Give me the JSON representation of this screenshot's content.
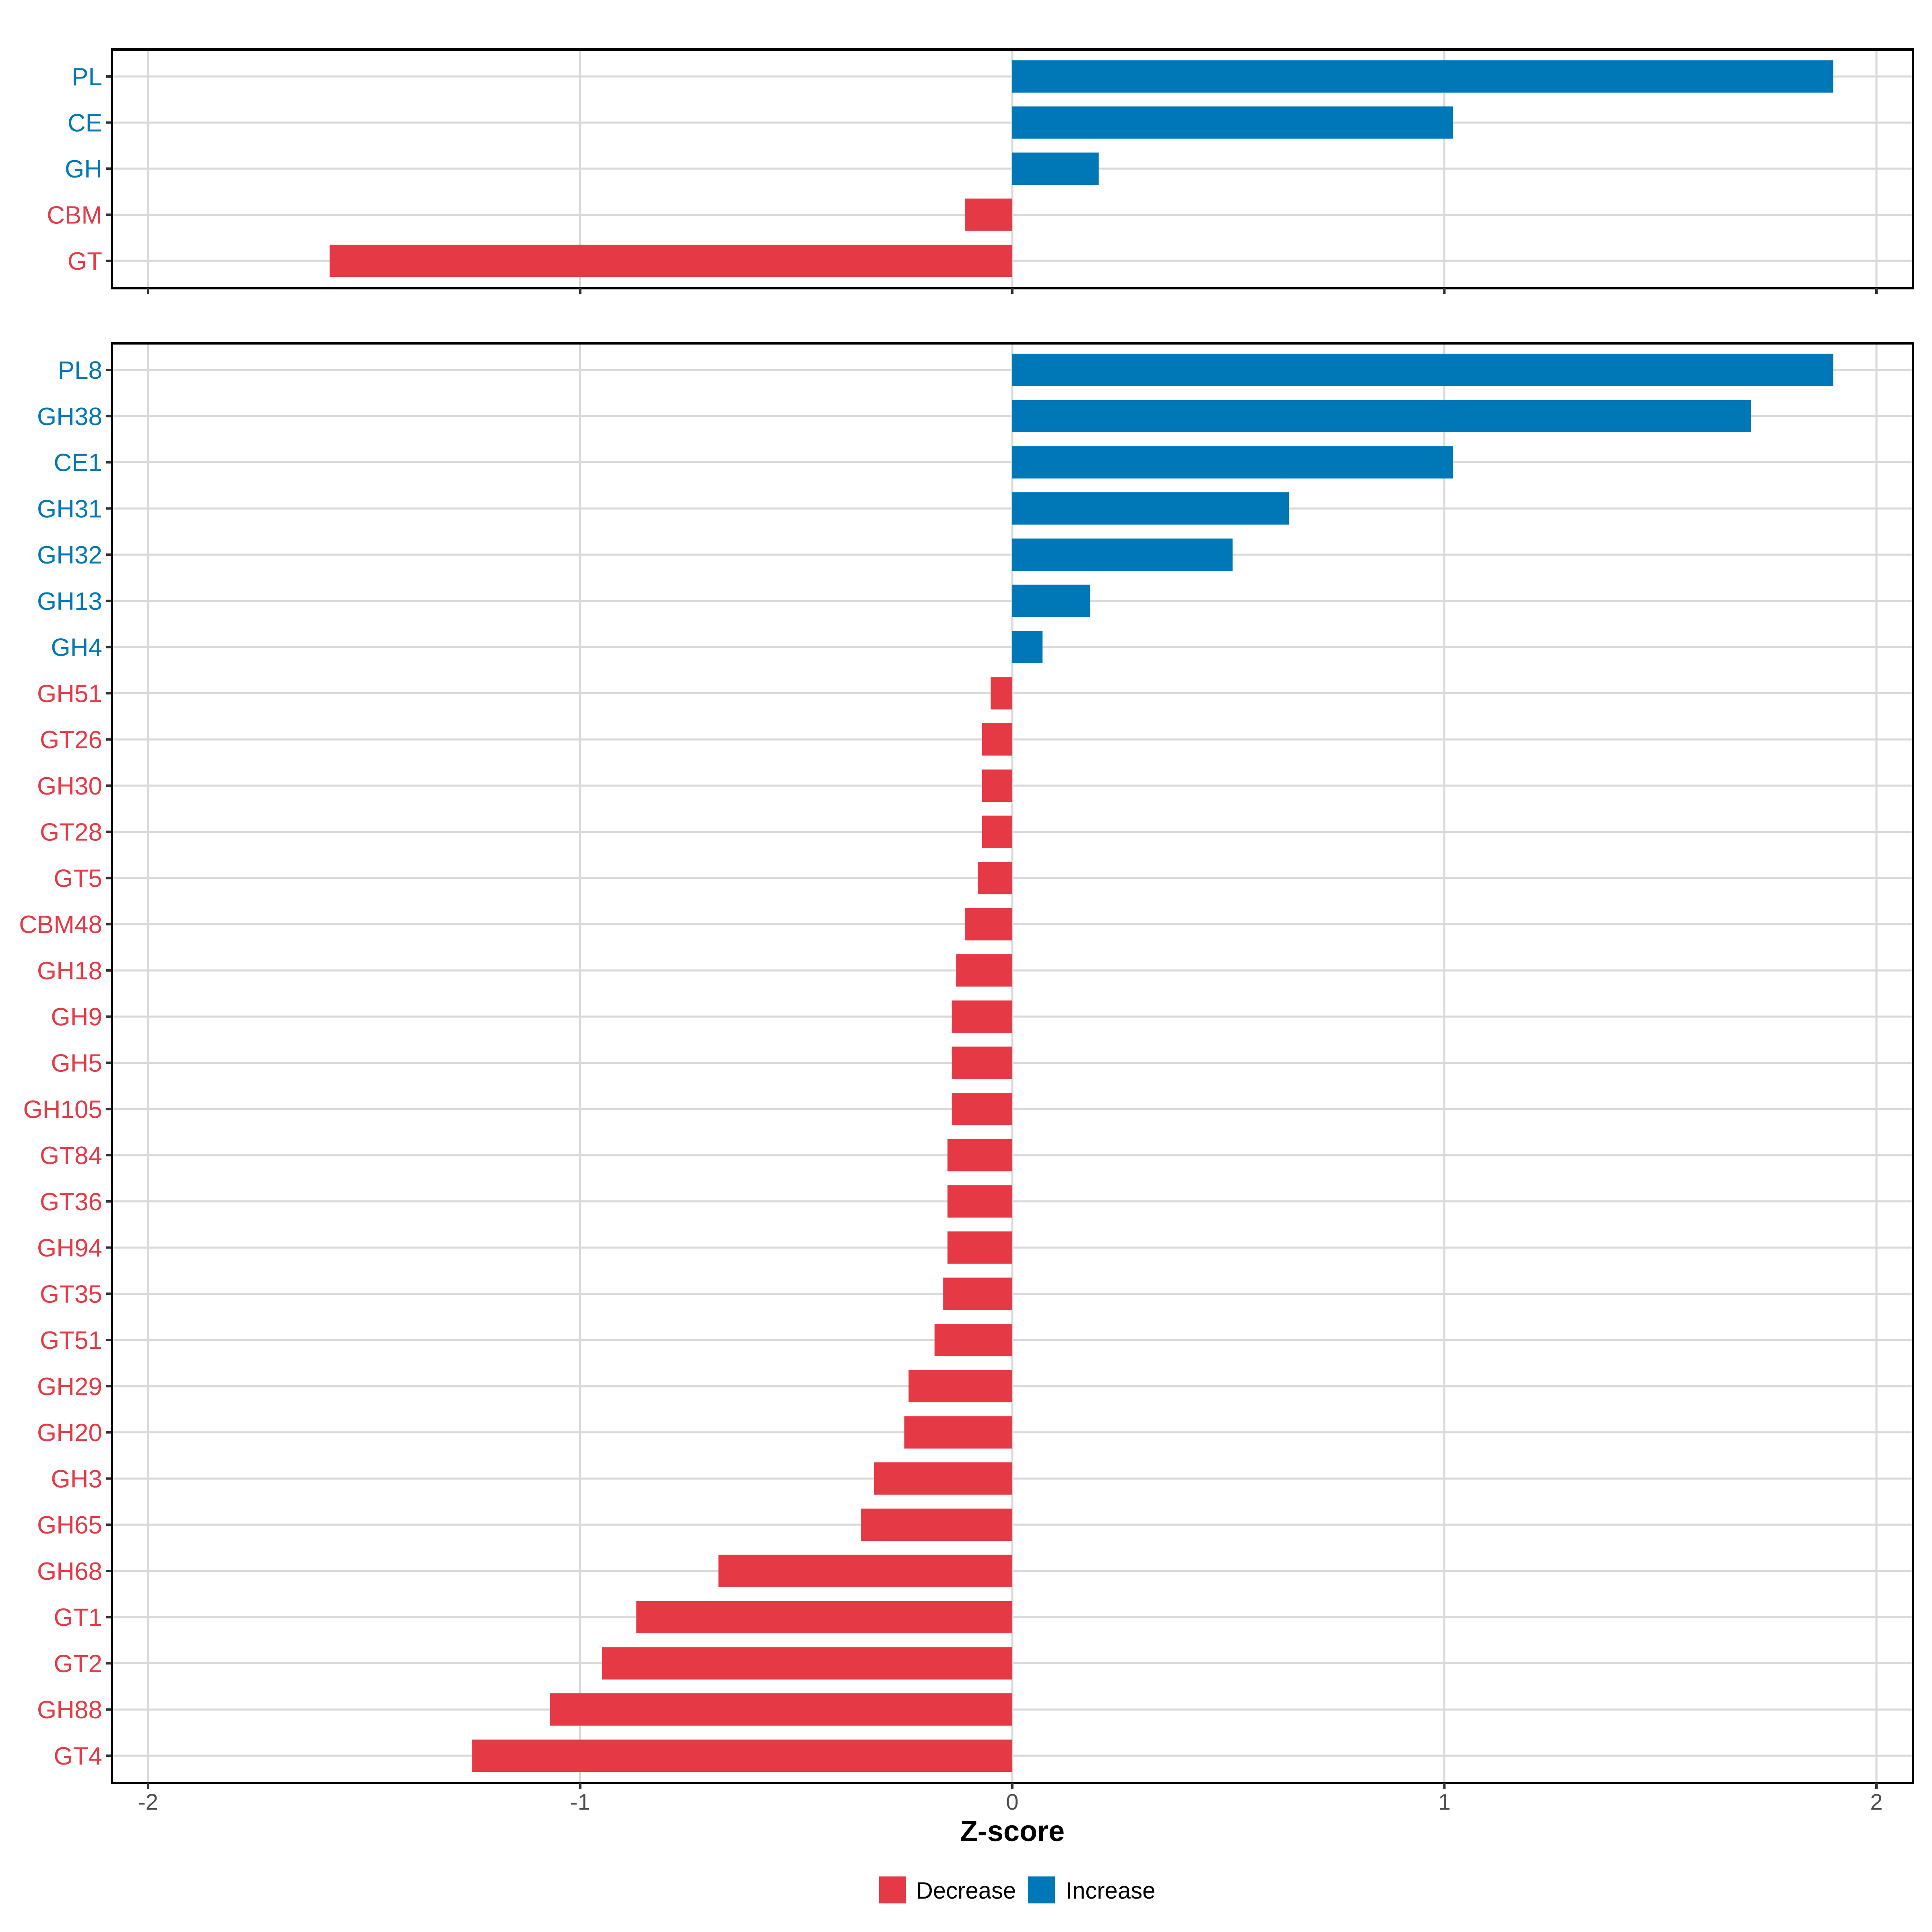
{
  "colors": {
    "decrease": "#E63946",
    "increase": "#0077B6",
    "grid": "#D9D9D9",
    "frame": "#000000",
    "tick": "#333333",
    "tick_label": "#4D4D4D"
  },
  "chart_data": [
    {
      "type": "bar",
      "orientation": "horizontal",
      "panel": "top",
      "title": "",
      "xlabel": "",
      "ylabel": "",
      "xlim": [
        -2,
        2
      ],
      "x_ticks": [
        -2,
        -1,
        0,
        1,
        2
      ],
      "grid": true,
      "categories": [
        "PL",
        "CE",
        "GH",
        "CBM",
        "GT"
      ],
      "values": [
        1.9,
        1.02,
        0.2,
        -0.11,
        -1.58
      ],
      "direction": [
        "Increase",
        "Increase",
        "Increase",
        "Decrease",
        "Decrease"
      ]
    },
    {
      "type": "bar",
      "orientation": "horizontal",
      "panel": "bottom",
      "title": "",
      "xlabel": "Z-score",
      "ylabel": "",
      "xlim": [
        -2,
        2
      ],
      "x_ticks": [
        -2,
        -1,
        0,
        1,
        2
      ],
      "x_tick_labels": [
        "-2",
        "-1",
        "0",
        "1",
        "2"
      ],
      "grid": true,
      "categories": [
        "PL8",
        "GH38",
        "CE1",
        "GH31",
        "GH32",
        "GH13",
        "GH4",
        "GH51",
        "GT26",
        "GH30",
        "GT28",
        "GT5",
        "CBM48",
        "GH18",
        "GH9",
        "GH5",
        "GH105",
        "GT84",
        "GT36",
        "GH94",
        "GT35",
        "GT51",
        "GH29",
        "GH20",
        "GH3",
        "GH65",
        "GH68",
        "GT1",
        "GT2",
        "GH88",
        "GT4"
      ],
      "values": [
        1.9,
        1.71,
        1.02,
        0.64,
        0.51,
        0.18,
        0.07,
        -0.05,
        -0.07,
        -0.07,
        -0.07,
        -0.08,
        -0.11,
        -0.13,
        -0.14,
        -0.14,
        -0.14,
        -0.15,
        -0.15,
        -0.15,
        -0.16,
        -0.18,
        -0.24,
        -0.25,
        -0.32,
        -0.35,
        -0.68,
        -0.87,
        -0.95,
        -1.07,
        -1.25
      ],
      "direction": [
        "Increase",
        "Increase",
        "Increase",
        "Increase",
        "Increase",
        "Increase",
        "Increase",
        "Decrease",
        "Decrease",
        "Decrease",
        "Decrease",
        "Decrease",
        "Decrease",
        "Decrease",
        "Decrease",
        "Decrease",
        "Decrease",
        "Decrease",
        "Decrease",
        "Decrease",
        "Decrease",
        "Decrease",
        "Decrease",
        "Decrease",
        "Decrease",
        "Decrease",
        "Decrease",
        "Decrease",
        "Decrease",
        "Decrease",
        "Decrease"
      ]
    }
  ],
  "legend": {
    "position": "bottom",
    "items": [
      {
        "label": "Decrease",
        "color": "#E63946"
      },
      {
        "label": "Increase",
        "color": "#0077B6"
      }
    ]
  }
}
